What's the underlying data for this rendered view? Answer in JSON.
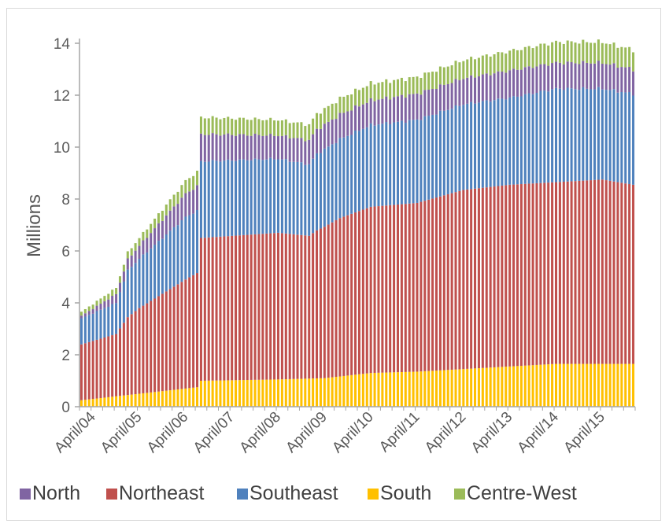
{
  "chart_data": {
    "type": "bar",
    "stacked": true,
    "title": "",
    "xlabel": "",
    "ylabel": "Millions",
    "ylim": [
      0,
      14
    ],
    "yticks": [
      0,
      2,
      4,
      6,
      8,
      10,
      12,
      14
    ],
    "grid": false,
    "legend_position": "bottom",
    "x_tick_labels": [
      "April/04",
      "April/05",
      "April/06",
      "April/07",
      "April/08",
      "April/09",
      "April/10",
      "April/11",
      "April/12",
      "April/13",
      "April/14",
      "April/15"
    ],
    "x_start": "2004-01",
    "x_end": "2015-12",
    "series": [
      {
        "name": "South",
        "color": "#ffc000",
        "anchors": [
          [
            "2004-01",
            0.25
          ],
          [
            "2004-10",
            0.4
          ],
          [
            "2005-04",
            0.5
          ],
          [
            "2006-04",
            0.7
          ],
          [
            "2006-07",
            0.75
          ],
          [
            "2006-08",
            1.0
          ],
          [
            "2008-04",
            1.05
          ],
          [
            "2009-04",
            1.1
          ],
          [
            "2010-04",
            1.3
          ],
          [
            "2011-04",
            1.35
          ],
          [
            "2012-04",
            1.45
          ],
          [
            "2013-04",
            1.55
          ],
          [
            "2014-04",
            1.65
          ],
          [
            "2015-04",
            1.65
          ],
          [
            "2015-12",
            1.65
          ]
        ]
      },
      {
        "name": "Northeast",
        "color": "#c0504d",
        "anchors": [
          [
            "2004-01",
            2.15
          ],
          [
            "2004-10",
            2.4
          ],
          [
            "2005-01",
            3.0
          ],
          [
            "2005-04",
            3.3
          ],
          [
            "2006-04",
            4.2
          ],
          [
            "2006-07",
            4.4
          ],
          [
            "2006-08",
            5.5
          ],
          [
            "2008-04",
            5.65
          ],
          [
            "2008-12",
            5.5
          ],
          [
            "2009-02",
            5.7
          ],
          [
            "2009-08",
            6.1
          ],
          [
            "2010-04",
            6.4
          ],
          [
            "2011-04",
            6.5
          ],
          [
            "2012-04",
            6.9
          ],
          [
            "2013-04",
            7.0
          ],
          [
            "2014-04",
            7.0
          ],
          [
            "2015-04",
            7.1
          ],
          [
            "2015-12",
            6.9
          ]
        ]
      },
      {
        "name": "Southeast",
        "color": "#4f81bd",
        "anchors": [
          [
            "2004-01",
            1.0
          ],
          [
            "2004-10",
            1.2
          ],
          [
            "2005-01",
            1.8
          ],
          [
            "2005-04",
            1.9
          ],
          [
            "2006-04",
            2.4
          ],
          [
            "2006-07",
            2.4
          ],
          [
            "2006-08",
            2.95
          ],
          [
            "2008-04",
            2.85
          ],
          [
            "2008-12",
            2.75
          ],
          [
            "2009-02",
            2.95
          ],
          [
            "2010-04",
            3.15
          ],
          [
            "2011-04",
            3.2
          ],
          [
            "2012-04",
            3.3
          ],
          [
            "2013-04",
            3.35
          ],
          [
            "2014-04",
            3.6
          ],
          [
            "2015-04",
            3.5
          ],
          [
            "2015-12",
            3.5
          ]
        ]
      },
      {
        "name": "North",
        "color": "#8064a2",
        "anchors": [
          [
            "2004-01",
            0.1
          ],
          [
            "2005-04",
            0.5
          ],
          [
            "2006-04",
            0.9
          ],
          [
            "2006-07",
            0.95
          ],
          [
            "2006-08",
            1.05
          ],
          [
            "2008-04",
            0.9
          ],
          [
            "2009-04",
            0.95
          ],
          [
            "2010-04",
            0.95
          ],
          [
            "2011-04",
            1.0
          ],
          [
            "2012-04",
            1.0
          ],
          [
            "2013-04",
            1.05
          ],
          [
            "2014-04",
            1.0
          ],
          [
            "2015-04",
            1.0
          ],
          [
            "2015-12",
            0.95
          ]
        ]
      },
      {
        "name": "Centre-West",
        "color": "#9bbb59",
        "anchors": [
          [
            "2004-01",
            0.15
          ],
          [
            "2005-04",
            0.3
          ],
          [
            "2006-04",
            0.5
          ],
          [
            "2006-07",
            0.55
          ],
          [
            "2006-08",
            0.65
          ],
          [
            "2008-04",
            0.6
          ],
          [
            "2009-04",
            0.6
          ],
          [
            "2010-04",
            0.65
          ],
          [
            "2011-04",
            0.65
          ],
          [
            "2012-04",
            0.7
          ],
          [
            "2013-04",
            0.75
          ],
          [
            "2014-04",
            0.8
          ],
          [
            "2015-04",
            0.8
          ],
          [
            "2015-12",
            0.75
          ]
        ]
      }
    ],
    "legend_order": [
      "North",
      "Northeast",
      "Southeast",
      "South",
      "Centre-West"
    ]
  }
}
